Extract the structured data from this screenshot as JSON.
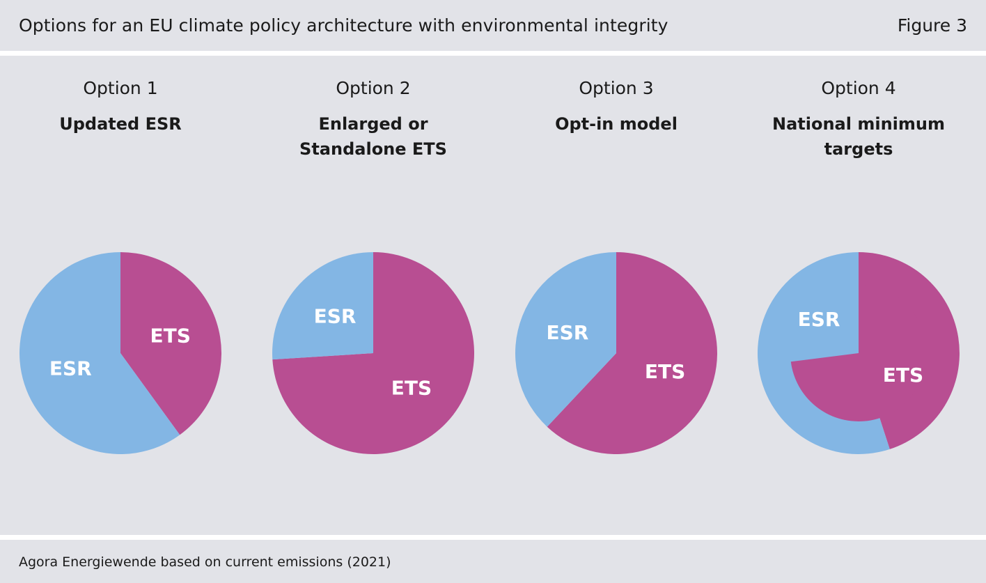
{
  "header": {
    "title": "Options for an EU climate policy architecture with environmental integrity",
    "figure_label": "Figure 3"
  },
  "footer": {
    "source": "Agora Energiewende based on current emissions (2021)"
  },
  "colors": {
    "ETS": "#b84e92",
    "ESR": "#83b6e4",
    "background": "#e2e3e8"
  },
  "chart_data": [
    {
      "type": "pie",
      "option": "Option 1",
      "name": "Updated ESR",
      "slices": [
        {
          "label": "ETS",
          "value": 40
        },
        {
          "label": "ESR",
          "value": 60
        }
      ]
    },
    {
      "type": "pie",
      "option": "Option 2",
      "name": "Enlarged or\nStandalone ETS",
      "slices": [
        {
          "label": "ETS",
          "value": 74
        },
        {
          "label": "ESR",
          "value": 26
        }
      ]
    },
    {
      "type": "pie",
      "option": "Option 3",
      "name": "Opt-in model",
      "slices": [
        {
          "label": "ETS",
          "value": 62
        },
        {
          "label": "ESR",
          "value": 38
        }
      ]
    },
    {
      "type": "pie",
      "option": "Option 4",
      "name": "National minimum\ntargets",
      "slices": [
        {
          "label": "ETS",
          "value": 45
        },
        {
          "label": "ESR",
          "value": 55
        }
      ],
      "overlay": {
        "label": "ETS",
        "value": 73
      }
    }
  ]
}
